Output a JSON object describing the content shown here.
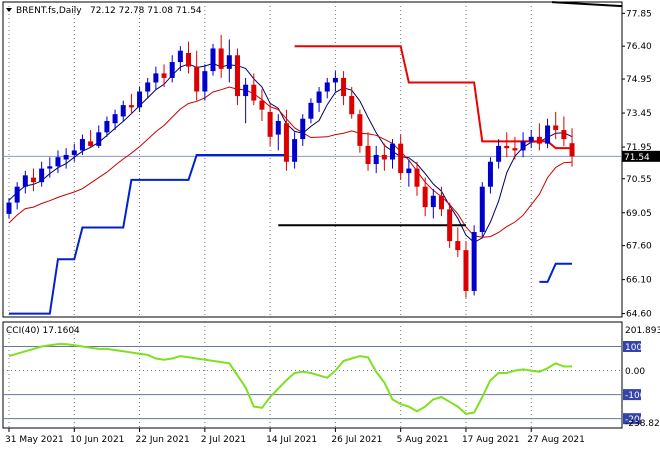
{
  "chart_data": [
    {
      "type": "candlestick",
      "header": {
        "symbol_label": "BRENT.fs,Daily",
        "ohlc_label": "72.12 72.78 71.08 71.54"
      },
      "current_price": {
        "label": "71.54",
        "value": 71.54
      },
      "y_ticks": [
        "77.85",
        "76.40",
        "74.95",
        "73.45",
        "71.95",
        "70.55",
        "69.05",
        "67.60",
        "66.10",
        "64.60"
      ],
      "y_tick_values": [
        77.85,
        76.4,
        74.95,
        73.45,
        71.95,
        70.55,
        69.05,
        67.6,
        66.1,
        64.6
      ],
      "ylim": [
        64.45,
        78.35
      ],
      "x_labels": [
        "31 May 2021",
        "10 Jun 2021",
        "22 Jun 2021",
        "2 Jul 2021",
        "14 Jul 2021",
        "26 Jul 2021",
        "5 Aug 2021",
        "17 Aug 2021",
        "27 Aug 2021"
      ],
      "x_label_index": [
        0,
        8,
        16,
        24,
        32,
        40,
        48,
        56,
        64
      ],
      "up_color": "#0000cc",
      "down_color": "#dd0000",
      "candles": [
        [
          69.0,
          69.7,
          68.8,
          69.5
        ],
        [
          69.5,
          70.4,
          69.2,
          70.2
        ],
        [
          70.2,
          70.9,
          69.9,
          70.7
        ],
        [
          70.6,
          71.0,
          70.0,
          70.4
        ],
        [
          70.4,
          71.3,
          70.2,
          71.0
        ],
        [
          71.0,
          71.5,
          70.6,
          71.1
        ],
        [
          71.1,
          71.8,
          70.8,
          71.5
        ],
        [
          71.4,
          71.9,
          71.0,
          71.6
        ],
        [
          71.6,
          72.1,
          71.3,
          71.8
        ],
        [
          71.8,
          72.5,
          71.6,
          72.3
        ],
        [
          72.2,
          72.7,
          71.9,
          72.0
        ],
        [
          72.0,
          72.9,
          71.9,
          72.6
        ],
        [
          72.6,
          73.3,
          72.4,
          73.1
        ],
        [
          73.0,
          73.6,
          72.7,
          73.4
        ],
        [
          73.3,
          74.0,
          73.1,
          73.8
        ],
        [
          73.8,
          74.3,
          73.4,
          73.7
        ],
        [
          73.7,
          74.6,
          73.5,
          74.4
        ],
        [
          74.4,
          75.0,
          74.1,
          74.8
        ],
        [
          74.8,
          75.5,
          74.5,
          75.2
        ],
        [
          75.2,
          75.6,
          74.6,
          75.0
        ],
        [
          75.0,
          76.0,
          74.8,
          75.7
        ],
        [
          75.7,
          76.4,
          75.3,
          76.2
        ],
        [
          76.1,
          76.6,
          75.2,
          75.5
        ],
        [
          75.5,
          76.2,
          74.0,
          74.4
        ],
        [
          74.4,
          75.6,
          74.0,
          75.3
        ],
        [
          75.3,
          76.5,
          75.1,
          76.3
        ],
        [
          76.3,
          76.9,
          75.0,
          75.4
        ],
        [
          75.4,
          76.7,
          74.8,
          76.0
        ],
        [
          76.0,
          76.3,
          73.8,
          74.2
        ],
        [
          74.2,
          75.0,
          73.0,
          74.7
        ],
        [
          74.7,
          75.2,
          73.8,
          74.0
        ],
        [
          74.0,
          74.5,
          73.1,
          73.6
        ],
        [
          73.5,
          73.9,
          72.0,
          72.4
        ],
        [
          72.5,
          73.4,
          71.8,
          73.1
        ],
        [
          73.0,
          73.6,
          70.9,
          71.3
        ],
        [
          71.3,
          72.6,
          71.0,
          72.3
        ],
        [
          72.3,
          73.4,
          72.0,
          73.2
        ],
        [
          73.2,
          74.1,
          73.0,
          73.9
        ],
        [
          73.9,
          74.6,
          73.5,
          74.4
        ],
        [
          74.4,
          75.0,
          74.1,
          74.8
        ],
        [
          74.8,
          75.3,
          74.4,
          75.0
        ],
        [
          75.0,
          75.3,
          73.8,
          74.2
        ],
        [
          74.2,
          74.6,
          73.2,
          73.4
        ],
        [
          73.4,
          73.6,
          71.7,
          72.0
        ],
        [
          72.0,
          72.6,
          70.9,
          71.2
        ],
        [
          71.2,
          72.0,
          70.8,
          71.6
        ],
        [
          71.6,
          72.1,
          70.9,
          71.4
        ],
        [
          71.4,
          72.3,
          71.0,
          72.1
        ],
        [
          72.1,
          72.5,
          70.5,
          70.8
        ],
        [
          70.8,
          71.4,
          70.2,
          71.0
        ],
        [
          71.0,
          71.3,
          69.8,
          70.2
        ],
        [
          70.2,
          70.6,
          68.9,
          69.3
        ],
        [
          69.3,
          70.1,
          68.8,
          69.8
        ],
        [
          69.8,
          70.2,
          68.9,
          69.2
        ],
        [
          69.2,
          69.5,
          67.5,
          67.8
        ],
        [
          67.8,
          68.4,
          67.1,
          67.4
        ],
        [
          67.4,
          67.8,
          65.3,
          65.6
        ],
        [
          65.6,
          68.5,
          65.4,
          68.2
        ],
        [
          68.2,
          70.4,
          68.0,
          70.2
        ],
        [
          70.2,
          71.5,
          69.9,
          71.3
        ],
        [
          71.3,
          72.3,
          71.0,
          72.0
        ],
        [
          72.0,
          72.6,
          71.5,
          71.9
        ],
        [
          71.9,
          72.4,
          71.4,
          71.8
        ],
        [
          71.8,
          72.6,
          71.5,
          72.2
        ],
        [
          72.2,
          72.7,
          71.9,
          72.4
        ],
        [
          72.4,
          73.0,
          71.8,
          72.1
        ],
        [
          72.1,
          73.2,
          71.9,
          72.9
        ],
        [
          72.9,
          73.5,
          72.3,
          72.7
        ],
        [
          72.7,
          73.3,
          72.0,
          72.3
        ],
        [
          72.12,
          72.78,
          71.08,
          71.54
        ]
      ],
      "hline_black_top": [
        {
          "from": 69,
          "to": 79,
          "value": 78.3
        }
      ],
      "hline_black": [
        {
          "from": 33,
          "to": 56,
          "value": 68.5
        }
      ],
      "red_step_line": [
        {
          "from": 35,
          "to": 48,
          "value": 76.4
        },
        {
          "from": 49,
          "to": 57,
          "value": 74.8
        },
        {
          "from": 58,
          "to": 66,
          "value": 72.2
        },
        {
          "from": 67,
          "to": 69,
          "value": 71.9
        }
      ],
      "blue_step_line": [
        {
          "from": 0,
          "to": 5,
          "value": 64.6
        },
        {
          "from": 6,
          "to": 8,
          "value": 67.0
        },
        {
          "from": 9,
          "to": 14,
          "value": 68.4
        },
        {
          "from": 15,
          "to": 22,
          "value": 70.5
        },
        {
          "from": 23,
          "to": 34,
          "value": 71.6
        },
        {
          "from": 65,
          "to": 66,
          "value": 66.0
        },
        {
          "from": 67,
          "to": 69,
          "value": 66.8
        }
      ],
      "indicator": {
        "label": "CCI(40) 17.1604",
        "max_label": "201.8937",
        "min_label": "-238.825",
        "levels": [
          "100",
          "0.00",
          "-100",
          "-200"
        ],
        "level_values": [
          100,
          0,
          -100,
          -200
        ],
        "ylim": [
          -238.825,
          201.8937
        ],
        "line_color": "#7fe020",
        "values": [
          60,
          70,
          80,
          90,
          100,
          105,
          110,
          110,
          105,
          100,
          95,
          90,
          90,
          85,
          80,
          75,
          70,
          65,
          50,
          45,
          50,
          60,
          55,
          50,
          45,
          40,
          35,
          30,
          -20,
          -70,
          -150,
          -155,
          -110,
          -75,
          -40,
          -10,
          -5,
          -10,
          -20,
          -30,
          0,
          40,
          50,
          60,
          55,
          -5,
          -50,
          -120,
          -140,
          -150,
          -170,
          -150,
          -120,
          -110,
          -130,
          -150,
          -180,
          -175,
          -110,
          -40,
          -10,
          -10,
          0,
          5,
          0,
          -5,
          10,
          30,
          17,
          17.16
        ]
      }
    }
  ]
}
